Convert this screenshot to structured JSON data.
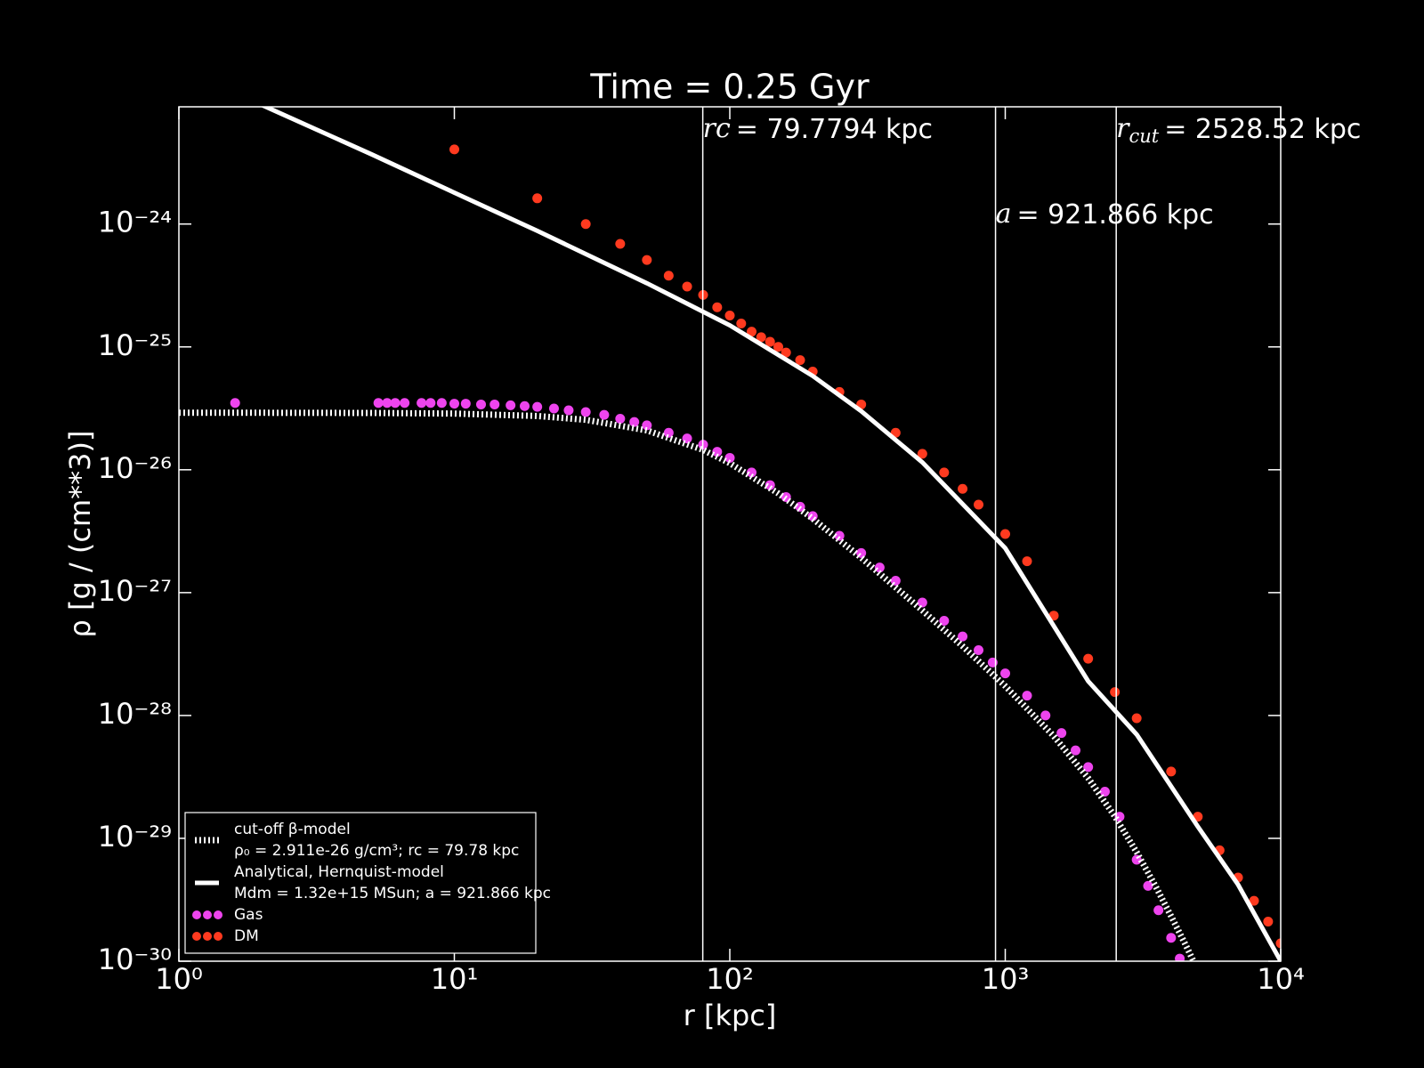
{
  "chart_data": {
    "type": "line",
    "title": "Time = 0.25 Gyr",
    "x_label": "r [kpc]",
    "y_label": "ρ [g / (cm**3)]",
    "log_x": true,
    "log_y": true,
    "xlim": [
      1,
      10000
    ],
    "ylim": [
      1e-30,
      9e-24
    ],
    "xticks": [
      {
        "value": 1,
        "label": "10⁰"
      },
      {
        "value": 10,
        "label": "10¹"
      },
      {
        "value": 100,
        "label": "10²"
      },
      {
        "value": 1000,
        "label": "10³"
      },
      {
        "value": 10000,
        "label": "10⁴"
      }
    ],
    "yticks": [
      {
        "value": 1e-30,
        "label": "10⁻³⁰"
      },
      {
        "value": 1e-29,
        "label": "10⁻²⁹"
      },
      {
        "value": 1e-28,
        "label": "10⁻²⁸"
      },
      {
        "value": 1e-27,
        "label": "10⁻²⁷"
      },
      {
        "value": 1e-26,
        "label": "10⁻²⁶"
      },
      {
        "value": 1e-25,
        "label": "10⁻²⁵"
      },
      {
        "value": 1e-24,
        "label": "10⁻²⁴"
      }
    ],
    "legend": "lower left",
    "vlines": [
      {
        "x": 79.7794,
        "symbol": "rc",
        "text": "=  79.7794 kpc",
        "row": 0
      },
      {
        "x": 921.866,
        "symbol": "a",
        "text": "=  921.866 kpc",
        "row": 1
      },
      {
        "x": 2528.52,
        "symbol": "r",
        "subscript": "cut",
        "text": "=  2528.52 kpc",
        "row": 0
      }
    ],
    "series": [
      {
        "name": "cut-off β-model",
        "name_line2": "ρ₀ = 2.911e-26 g/cm³; rc = 79.78 kpc",
        "kind": "line",
        "dotted": true,
        "color": "#ffffff",
        "x": [
          1,
          2,
          5,
          10,
          20,
          30,
          50,
          80,
          100,
          150,
          200,
          300,
          500,
          700,
          1000,
          1500,
          2000,
          2500,
          3000,
          3500,
          4000,
          4500,
          4900
        ],
        "values": [
          2.91e-26,
          2.909e-26,
          2.9e-26,
          2.866e-26,
          2.739e-26,
          2.55e-26,
          2.09e-26,
          1.451e-26,
          1.132e-26,
          6.42e-27,
          3.996e-27,
          1.923e-27,
          7.17e-28,
          3.66e-28,
          1.734e-28,
          6.79e-29,
          3.09e-29,
          1.506e-29,
          7.7e-30,
          4.14e-30,
          2.33e-30,
          1.38e-30,
          9.3e-31
        ]
      },
      {
        "name": "Analytical, Hernquist-model",
        "name_line2": "Mdm = 1.32e+15 MSun; a = 921.866 kpc",
        "kind": "line",
        "dotted": false,
        "color": "#ffffff",
        "x": [
          1,
          2,
          5,
          10,
          20,
          50,
          100,
          200,
          300,
          500,
          1000,
          2000,
          3000,
          5000,
          7000,
          10000
        ],
        "values": [
          1.9e-23,
          9.3e-24,
          3.7e-24,
          1.8e-24,
          8.8e-25,
          3.3e-25,
          1.5e-25,
          5.8e-26,
          3e-26,
          1.15e-26,
          2.3e-27,
          1.9e-28,
          7e-29,
          1.25e-29,
          4.2e-30,
          1e-30
        ]
      },
      {
        "name": "Gas",
        "kind": "scatter",
        "color": "#ee44ee",
        "x": [
          1.6,
          5.3,
          5.7,
          6.1,
          6.6,
          7.6,
          8.2,
          9,
          10,
          11,
          12.5,
          14,
          16,
          18,
          20,
          23,
          26,
          30,
          35,
          40,
          45,
          50,
          60,
          70,
          80,
          90,
          100,
          120,
          140,
          160,
          180,
          200,
          250,
          300,
          350,
          400,
          500,
          600,
          700,
          800,
          900,
          1000,
          1200,
          1400,
          1600,
          1800,
          2000,
          2300,
          2600,
          3000,
          3300,
          3600,
          4000,
          4300
        ],
        "values": [
          3.5e-26,
          3.5e-26,
          3.5e-26,
          3.5e-26,
          3.5e-26,
          3.5e-26,
          3.5e-26,
          3.5e-26,
          3.45e-26,
          3.45e-26,
          3.4e-26,
          3.4e-26,
          3.35e-26,
          3.3e-26,
          3.25e-26,
          3.15e-26,
          3.05e-26,
          2.95e-26,
          2.8e-26,
          2.6e-26,
          2.45e-26,
          2.3e-26,
          2e-26,
          1.8e-26,
          1.6e-26,
          1.4e-26,
          1.25e-26,
          9.5e-27,
          7.5e-27,
          6e-27,
          5e-27,
          4.2e-27,
          2.9e-27,
          2.1e-27,
          1.6e-27,
          1.25e-27,
          8.3e-28,
          5.9e-28,
          4.4e-28,
          3.4e-28,
          2.7e-28,
          2.2e-28,
          1.45e-28,
          1e-28,
          7.2e-29,
          5.2e-29,
          3.8e-29,
          2.4e-29,
          1.5e-29,
          6.7e-30,
          4.1e-30,
          2.6e-30,
          1.55e-30,
          1.05e-30
        ]
      },
      {
        "name": "DM",
        "kind": "scatter",
        "color": "#ff3a1f",
        "x": [
          10,
          20,
          30,
          40,
          50,
          60,
          70,
          80,
          90,
          100,
          110,
          120,
          130,
          140,
          150,
          160,
          180,
          200,
          250,
          300,
          400,
          500,
          600,
          700,
          800,
          1000,
          1200,
          1500,
          2000,
          2500,
          3000,
          4000,
          5000,
          6000,
          7000,
          8000,
          9000,
          10000
        ],
        "values": [
          4.05e-24,
          1.62e-24,
          1e-24,
          6.9e-25,
          5.1e-25,
          3.8e-25,
          3.1e-25,
          2.65e-25,
          2.1e-25,
          1.8e-25,
          1.55e-25,
          1.33e-25,
          1.2e-25,
          1.1e-25,
          1e-25,
          9e-26,
          7.8e-26,
          6.3e-26,
          4.3e-26,
          3.4e-26,
          2e-26,
          1.35e-26,
          9.5e-27,
          7e-27,
          5.2e-27,
          3e-27,
          1.8e-27,
          6.5e-28,
          2.9e-28,
          1.55e-28,
          9.5e-29,
          3.5e-29,
          1.5e-29,
          8e-30,
          4.8e-30,
          3.1e-30,
          2.1e-30,
          1.4e-30
        ]
      }
    ]
  }
}
